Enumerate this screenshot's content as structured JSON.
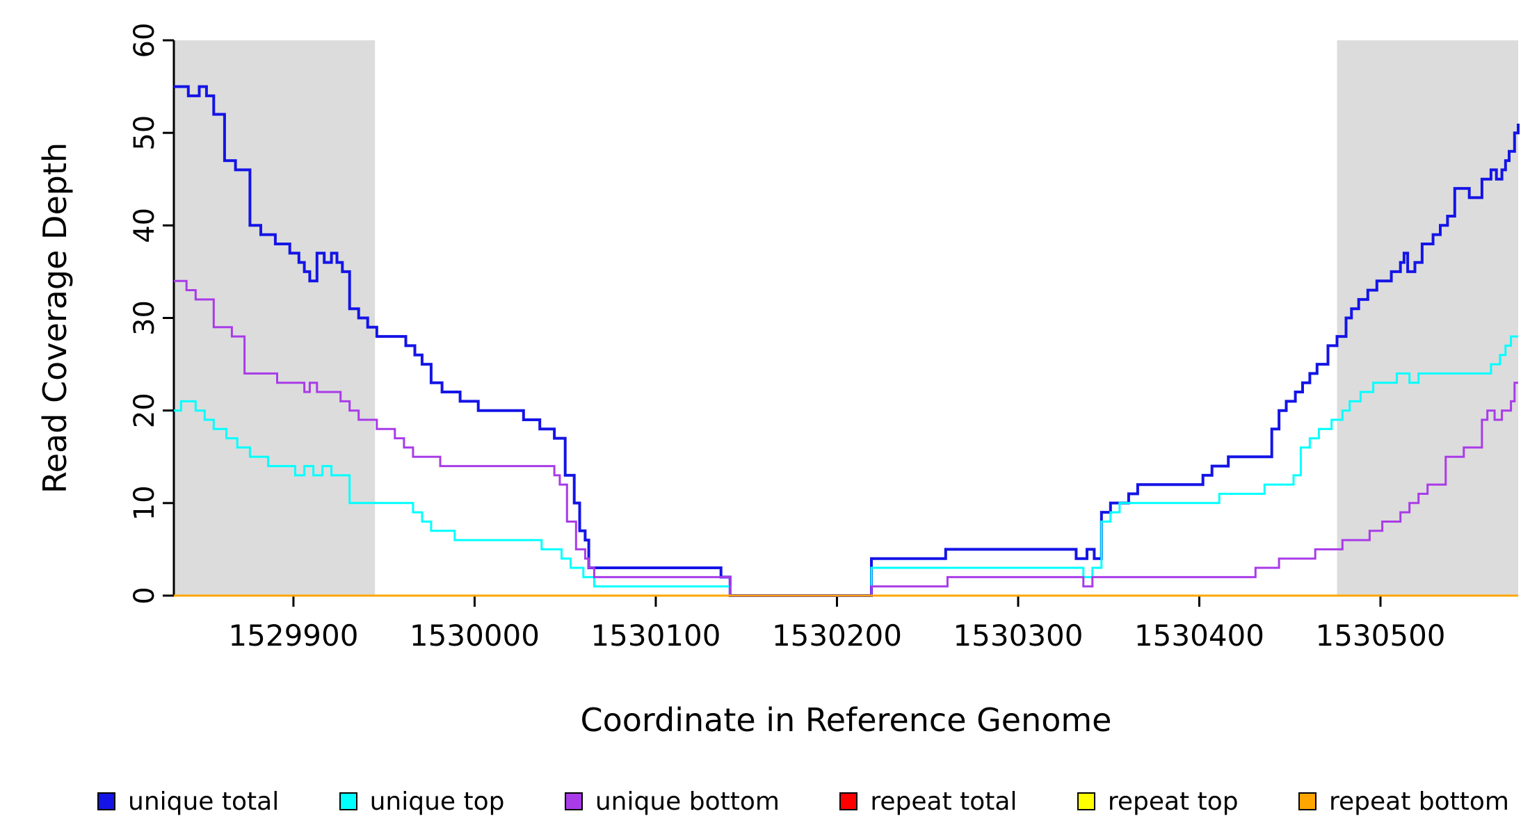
{
  "figure": {
    "x_axis_title": "Coordinate in Reference Genome",
    "y_axis_title": "Read Coverage Depth"
  },
  "chart_data": {
    "type": "line",
    "subtype": "step-after-coverage",
    "xlabel": "Coordinate in Reference Genome",
    "ylabel": "Read Coverage Depth",
    "x_domain": [
      1529834,
      1530576
    ],
    "y_domain": [
      0,
      60
    ],
    "x_ticks": [
      1529900,
      1530000,
      1530100,
      1530200,
      1530300,
      1530400,
      1530500
    ],
    "y_ticks": [
      0,
      10,
      20,
      30,
      40,
      50,
      60
    ],
    "grid": false,
    "legend_position": "bottom",
    "shade_color": "#DCDCDC",
    "shaded_regions": [
      {
        "x0": 1529834,
        "x1": 1529945
      },
      {
        "x0": 1530476,
        "x1": 1530576
      }
    ],
    "series": [
      {
        "name": "unique total",
        "color": "#1414E6",
        "width": 4,
        "points": [
          [
            1529834,
            55
          ],
          [
            1529842,
            54
          ],
          [
            1529848,
            55
          ],
          [
            1529852,
            54
          ],
          [
            1529856,
            52
          ],
          [
            1529862,
            47
          ],
          [
            1529868,
            46
          ],
          [
            1529876,
            40
          ],
          [
            1529882,
            39
          ],
          [
            1529890,
            38
          ],
          [
            1529898,
            37
          ],
          [
            1529903,
            36
          ],
          [
            1529906,
            35
          ],
          [
            1529909,
            34
          ],
          [
            1529913,
            37
          ],
          [
            1529917,
            36
          ],
          [
            1529921,
            37
          ],
          [
            1529924,
            36
          ],
          [
            1529927,
            35
          ],
          [
            1529931,
            31
          ],
          [
            1529936,
            30
          ],
          [
            1529941,
            29
          ],
          [
            1529946,
            28
          ],
          [
            1529958,
            28
          ],
          [
            1529962,
            27
          ],
          [
            1529967,
            26
          ],
          [
            1529971,
            25
          ],
          [
            1529976,
            23
          ],
          [
            1529982,
            22
          ],
          [
            1529992,
            21
          ],
          [
            1530002,
            20
          ],
          [
            1530022,
            20
          ],
          [
            1530027,
            19
          ],
          [
            1530036,
            18
          ],
          [
            1530044,
            17
          ],
          [
            1530050,
            13
          ],
          [
            1530055,
            10
          ],
          [
            1530058,
            7
          ],
          [
            1530061,
            6
          ],
          [
            1530063,
            3
          ],
          [
            1530130,
            3
          ],
          [
            1530136,
            2
          ],
          [
            1530141,
            0
          ],
          [
            1530217,
            0
          ],
          [
            1530219,
            4
          ],
          [
            1530257,
            4
          ],
          [
            1530260,
            5
          ],
          [
            1530327,
            5
          ],
          [
            1530332,
            4
          ],
          [
            1530338,
            5
          ],
          [
            1530342,
            4
          ],
          [
            1530346,
            9
          ],
          [
            1530351,
            10
          ],
          [
            1530361,
            11
          ],
          [
            1530366,
            12
          ],
          [
            1530396,
            12
          ],
          [
            1530402,
            13
          ],
          [
            1530407,
            14
          ],
          [
            1530416,
            15
          ],
          [
            1530436,
            15
          ],
          [
            1530440,
            18
          ],
          [
            1530444,
            20
          ],
          [
            1530448,
            21
          ],
          [
            1530453,
            22
          ],
          [
            1530457,
            23
          ],
          [
            1530461,
            24
          ],
          [
            1530465,
            25
          ],
          [
            1530471,
            27
          ],
          [
            1530476,
            28
          ],
          [
            1530481,
            30
          ],
          [
            1530484,
            31
          ],
          [
            1530488,
            32
          ],
          [
            1530493,
            33
          ],
          [
            1530498,
            34
          ],
          [
            1530506,
            35
          ],
          [
            1530511,
            36
          ],
          [
            1530513,
            37
          ],
          [
            1530515,
            35
          ],
          [
            1530519,
            36
          ],
          [
            1530523,
            38
          ],
          [
            1530529,
            39
          ],
          [
            1530533,
            40
          ],
          [
            1530537,
            41
          ],
          [
            1530541,
            44
          ],
          [
            1530549,
            43
          ],
          [
            1530556,
            45
          ],
          [
            1530561,
            46
          ],
          [
            1530564,
            45
          ],
          [
            1530567,
            46
          ],
          [
            1530569,
            47
          ],
          [
            1530571,
            48
          ],
          [
            1530574,
            50
          ],
          [
            1530576,
            51
          ]
        ]
      },
      {
        "name": "unique top",
        "color": "#00FFFF",
        "width": 3,
        "points": [
          [
            1529834,
            20
          ],
          [
            1529838,
            21
          ],
          [
            1529846,
            20
          ],
          [
            1529851,
            19
          ],
          [
            1529856,
            18
          ],
          [
            1529863,
            17
          ],
          [
            1529869,
            16
          ],
          [
            1529876,
            15
          ],
          [
            1529886,
            14
          ],
          [
            1529901,
            13
          ],
          [
            1529906,
            14
          ],
          [
            1529911,
            13
          ],
          [
            1529916,
            14
          ],
          [
            1529921,
            13
          ],
          [
            1529931,
            10
          ],
          [
            1529962,
            10
          ],
          [
            1529966,
            9
          ],
          [
            1529971,
            8
          ],
          [
            1529976,
            7
          ],
          [
            1529989,
            6
          ],
          [
            1530033,
            6
          ],
          [
            1530037,
            5
          ],
          [
            1530048,
            4
          ],
          [
            1530053,
            3
          ],
          [
            1530060,
            2
          ],
          [
            1530066,
            1
          ],
          [
            1530136,
            1
          ],
          [
            1530141,
            0
          ],
          [
            1530217,
            0
          ],
          [
            1530219,
            3
          ],
          [
            1530332,
            3
          ],
          [
            1530336,
            2
          ],
          [
            1530341,
            3
          ],
          [
            1530346,
            8
          ],
          [
            1530351,
            9
          ],
          [
            1530356,
            10
          ],
          [
            1530401,
            10
          ],
          [
            1530411,
            11
          ],
          [
            1530436,
            12
          ],
          [
            1530452,
            13
          ],
          [
            1530456,
            16
          ],
          [
            1530461,
            17
          ],
          [
            1530466,
            18
          ],
          [
            1530473,
            19
          ],
          [
            1530479,
            20
          ],
          [
            1530483,
            21
          ],
          [
            1530489,
            22
          ],
          [
            1530496,
            23
          ],
          [
            1530509,
            24
          ],
          [
            1530516,
            23
          ],
          [
            1530521,
            24
          ],
          [
            1530561,
            25
          ],
          [
            1530566,
            26
          ],
          [
            1530569,
            27
          ],
          [
            1530572,
            28
          ],
          [
            1530576,
            28
          ]
        ]
      },
      {
        "name": "unique bottom",
        "color": "#A93BE8",
        "width": 3,
        "points": [
          [
            1529834,
            34
          ],
          [
            1529841,
            33
          ],
          [
            1529846,
            32
          ],
          [
            1529856,
            29
          ],
          [
            1529866,
            28
          ],
          [
            1529873,
            24
          ],
          [
            1529891,
            23
          ],
          [
            1529906,
            22
          ],
          [
            1529909,
            23
          ],
          [
            1529913,
            22
          ],
          [
            1529926,
            21
          ],
          [
            1529931,
            20
          ],
          [
            1529936,
            19
          ],
          [
            1529946,
            18
          ],
          [
            1529956,
            17
          ],
          [
            1529961,
            16
          ],
          [
            1529966,
            15
          ],
          [
            1529981,
            14
          ],
          [
            1530041,
            14
          ],
          [
            1530044,
            13
          ],
          [
            1530047,
            12
          ],
          [
            1530051,
            8
          ],
          [
            1530056,
            5
          ],
          [
            1530061,
            4
          ],
          [
            1530063,
            3
          ],
          [
            1530066,
            2
          ],
          [
            1530136,
            2
          ],
          [
            1530141,
            0
          ],
          [
            1530217,
            0
          ],
          [
            1530219,
            1
          ],
          [
            1530257,
            1
          ],
          [
            1530261,
            2
          ],
          [
            1530332,
            2
          ],
          [
            1530336,
            1
          ],
          [
            1530341,
            2
          ],
          [
            1530426,
            2
          ],
          [
            1530431,
            3
          ],
          [
            1530444,
            4
          ],
          [
            1530464,
            5
          ],
          [
            1530479,
            6
          ],
          [
            1530494,
            7
          ],
          [
            1530501,
            8
          ],
          [
            1530511,
            9
          ],
          [
            1530516,
            10
          ],
          [
            1530521,
            11
          ],
          [
            1530526,
            12
          ],
          [
            1530536,
            15
          ],
          [
            1530546,
            16
          ],
          [
            1530556,
            19
          ],
          [
            1530559,
            20
          ],
          [
            1530563,
            19
          ],
          [
            1530567,
            20
          ],
          [
            1530572,
            21
          ],
          [
            1530574,
            23
          ],
          [
            1530576,
            23
          ]
        ]
      },
      {
        "name": "repeat total",
        "color": "#FF0000",
        "width": 3,
        "points": [
          [
            1529834,
            0
          ],
          [
            1530576,
            0
          ]
        ]
      },
      {
        "name": "repeat top",
        "color": "#FFFF00",
        "width": 3,
        "points": [
          [
            1529834,
            0
          ],
          [
            1530576,
            0
          ]
        ]
      },
      {
        "name": "repeat bottom",
        "color": "#FFA500",
        "width": 3,
        "points": [
          [
            1529834,
            0
          ],
          [
            1530576,
            0
          ]
        ]
      }
    ]
  },
  "legend": {
    "items": [
      {
        "label": "unique total",
        "color": "#1414E6"
      },
      {
        "label": "unique top",
        "color": "#00FFFF"
      },
      {
        "label": "unique bottom",
        "color": "#A93BE8"
      },
      {
        "label": "repeat total",
        "color": "#FF0000"
      },
      {
        "label": "repeat top",
        "color": "#FFFF00"
      },
      {
        "label": "repeat bottom",
        "color": "#FFA500"
      }
    ]
  }
}
